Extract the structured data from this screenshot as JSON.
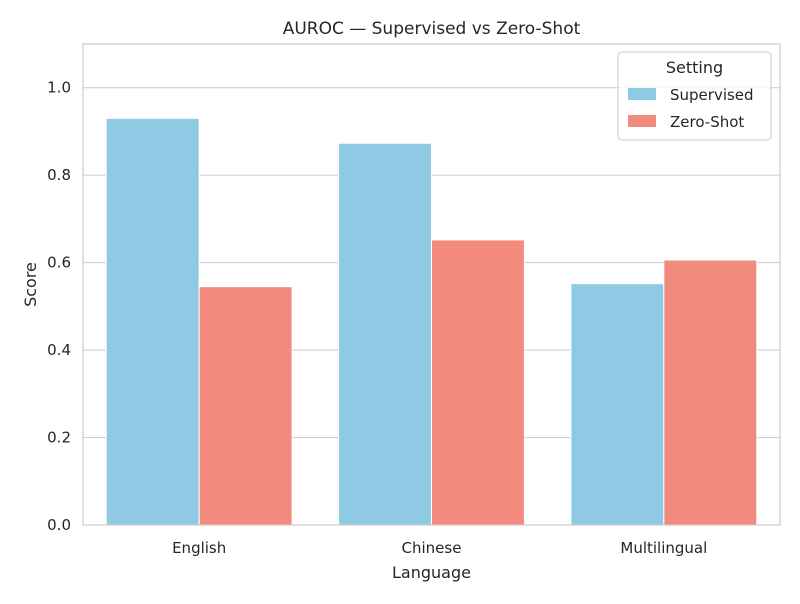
{
  "chart_data": {
    "type": "bar",
    "title": "AUROC — Supervised vs Zero-Shot",
    "xlabel": "Language",
    "ylabel": "Score",
    "categories": [
      "English",
      "Chinese",
      "Multilingual"
    ],
    "series": [
      {
        "name": "Supervised",
        "values": [
          0.93,
          0.873,
          0.552
        ],
        "color": "#8ecae3"
      },
      {
        "name": "Zero-Shot",
        "values": [
          0.545,
          0.652,
          0.606
        ],
        "color": "#f28b7d"
      }
    ],
    "ylim": [
      0,
      1.1
    ],
    "yticks": [
      0.0,
      0.2,
      0.4,
      0.6,
      0.8,
      1.0
    ],
    "ytick_labels": [
      "0.0",
      "0.2",
      "0.4",
      "0.6",
      "0.8",
      "1.0"
    ],
    "grid": true,
    "legend": {
      "title": "Setting",
      "placement": "top-right"
    }
  }
}
